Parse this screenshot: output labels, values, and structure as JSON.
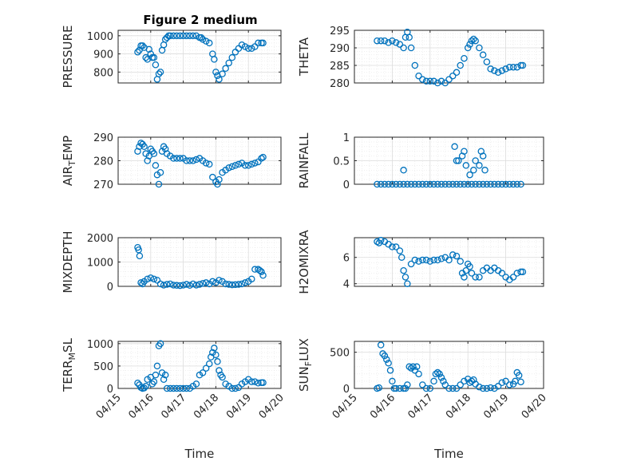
{
  "figure": {
    "title": "Figure 2 medium",
    "xlabel": "Time",
    "marker_color": "#0072BD",
    "x_tick_labels": [
      "04/15",
      "04/16",
      "04/17",
      "04/18",
      "04/19",
      "04/20"
    ],
    "x_ticks": [
      0,
      1,
      2,
      3,
      4,
      5
    ],
    "x_range": [
      0,
      5
    ],
    "grid": "on (major + minor)"
  },
  "chart_data": [
    {
      "type": "scatter",
      "ylabel": "PRESSURE",
      "ylim": [
        740,
        1030
      ],
      "yticks": [
        800,
        900,
        1000
      ],
      "x": [
        0.6,
        0.65,
        0.7,
        0.75,
        0.8,
        0.85,
        0.9,
        0.95,
        1.0,
        1.05,
        1.1,
        1.15,
        1.2,
        1.25,
        1.3,
        1.35,
        1.4,
        1.45,
        1.5,
        1.55,
        1.6,
        1.7,
        1.8,
        1.9,
        2.0,
        2.1,
        2.2,
        2.3,
        2.4,
        2.5,
        2.55,
        2.6,
        2.7,
        2.8,
        2.9,
        2.95,
        3.0,
        3.05,
        3.1,
        3.2,
        3.3,
        3.4,
        3.5,
        3.6,
        3.7,
        3.8,
        3.9,
        4.0,
        4.1,
        4.2,
        4.3,
        4.4,
        4.45
      ],
      "values": [
        910,
        920,
        945,
        945,
        935,
        880,
        870,
        925,
        900,
        880,
        880,
        840,
        760,
        790,
        800,
        920,
        950,
        980,
        990,
        1000,
        1000,
        1000,
        1000,
        1000,
        1000,
        1000,
        1000,
        1000,
        1000,
        990,
        990,
        980,
        970,
        960,
        900,
        870,
        800,
        780,
        760,
        790,
        820,
        850,
        880,
        910,
        930,
        950,
        940,
        930,
        930,
        940,
        960,
        960,
        960
      ]
    },
    {
      "type": "scatter",
      "ylabel": "THETA",
      "ylim": [
        280,
        295
      ],
      "yticks": [
        280,
        285,
        290,
        295
      ],
      "x": [
        0.6,
        0.7,
        0.8,
        0.9,
        1.0,
        1.1,
        1.2,
        1.3,
        1.35,
        1.4,
        1.45,
        1.5,
        1.6,
        1.7,
        1.8,
        1.9,
        2.0,
        2.1,
        2.2,
        2.3,
        2.4,
        2.5,
        2.6,
        2.7,
        2.8,
        2.9,
        3.0,
        3.05,
        3.1,
        3.15,
        3.2,
        3.3,
        3.4,
        3.5,
        3.6,
        3.7,
        3.8,
        3.9,
        4.0,
        4.1,
        4.2,
        4.3,
        4.4,
        4.45
      ],
      "values": [
        292,
        292,
        292,
        291.5,
        292,
        291.5,
        291,
        290,
        293,
        294.5,
        293,
        290,
        285,
        282,
        281,
        280.5,
        280.5,
        280.5,
        280,
        280.5,
        280,
        281,
        282,
        283,
        285,
        287,
        290,
        291,
        292,
        292.5,
        292,
        290,
        288,
        286,
        284,
        283.5,
        283,
        283.5,
        284,
        284.5,
        284.5,
        284.5,
        285,
        285
      ]
    },
    {
      "type": "scatter",
      "ylabel": "AIR_TEMP",
      "ylim": [
        270,
        290
      ],
      "yticks": [
        270,
        280,
        290
      ],
      "x": [
        0.6,
        0.65,
        0.7,
        0.75,
        0.8,
        0.85,
        0.9,
        0.95,
        1.0,
        1.05,
        1.1,
        1.15,
        1.2,
        1.25,
        1.3,
        1.35,
        1.4,
        1.45,
        1.5,
        1.6,
        1.7,
        1.8,
        1.9,
        2.0,
        2.1,
        2.2,
        2.3,
        2.4,
        2.5,
        2.6,
        2.7,
        2.8,
        2.9,
        3.0,
        3.05,
        3.1,
        3.2,
        3.3,
        3.4,
        3.5,
        3.6,
        3.7,
        3.8,
        3.9,
        4.0,
        4.1,
        4.2,
        4.3,
        4.4,
        4.45
      ],
      "values": [
        284,
        286,
        287.5,
        287,
        286,
        283,
        280,
        282,
        285,
        284,
        283,
        278,
        274,
        270,
        275,
        284,
        286,
        285,
        283,
        282,
        281,
        281,
        281,
        281,
        280,
        280,
        280,
        280.5,
        281,
        280,
        279,
        278.5,
        273,
        271,
        270,
        272,
        275,
        276,
        277,
        277.5,
        278,
        278.5,
        279,
        278,
        278,
        278.5,
        279,
        279.5,
        281,
        281.5
      ]
    },
    {
      "type": "scatter",
      "ylabel": "RAINFALL",
      "ylim": [
        0,
        1
      ],
      "yticks": [
        0,
        0.5,
        1
      ],
      "x": [
        0.6,
        0.7,
        0.8,
        0.9,
        1.0,
        1.1,
        1.2,
        1.3,
        1.4,
        1.5,
        1.6,
        1.7,
        1.8,
        1.9,
        2.0,
        2.1,
        2.2,
        2.3,
        2.4,
        2.5,
        2.6,
        2.7,
        2.8,
        2.9,
        3.0,
        3.1,
        3.2,
        3.3,
        3.4,
        3.5,
        3.6,
        3.7,
        3.8,
        3.9,
        4.0,
        4.1,
        4.2,
        4.3,
        4.4,
        1.3,
        2.65,
        2.7,
        2.75,
        2.85,
        2.9,
        2.95,
        3.05,
        3.15,
        3.2,
        3.3,
        3.35,
        3.4,
        3.45
      ],
      "values": [
        0,
        0,
        0,
        0,
        0,
        0,
        0,
        0,
        0,
        0,
        0,
        0,
        0,
        0,
        0,
        0,
        0,
        0,
        0,
        0,
        0,
        0,
        0,
        0,
        0,
        0,
        0,
        0,
        0,
        0,
        0,
        0,
        0,
        0,
        0,
        0,
        0,
        0,
        0,
        0.3,
        0.8,
        0.5,
        0.5,
        0.6,
        0.7,
        0.4,
        0.2,
        0.3,
        0.5,
        0.4,
        0.7,
        0.6,
        0.3
      ]
    },
    {
      "type": "scatter",
      "ylabel": "MIXDEPTH",
      "ylim": [
        0,
        2000
      ],
      "yticks": [
        0,
        1000,
        2000
      ],
      "x": [
        0.6,
        0.63,
        0.66,
        0.7,
        0.75,
        0.8,
        0.9,
        1.0,
        1.1,
        1.2,
        1.3,
        1.4,
        1.5,
        1.6,
        1.7,
        1.8,
        1.9,
        2.0,
        2.1,
        2.2,
        2.3,
        2.4,
        2.5,
        2.6,
        2.7,
        2.8,
        2.9,
        3.0,
        3.1,
        3.2,
        3.3,
        3.4,
        3.5,
        3.6,
        3.7,
        3.8,
        3.9,
        4.0,
        4.1,
        4.2,
        4.3,
        4.35,
        4.4,
        4.45
      ],
      "values": [
        1600,
        1500,
        1250,
        150,
        100,
        200,
        300,
        350,
        300,
        250,
        100,
        50,
        80,
        100,
        50,
        40,
        30,
        50,
        80,
        40,
        100,
        50,
        80,
        120,
        150,
        100,
        200,
        150,
        250,
        200,
        100,
        80,
        60,
        70,
        80,
        100,
        150,
        200,
        300,
        700,
        700,
        650,
        600,
        450
      ]
    },
    {
      "type": "scatter",
      "ylabel": "H2OMIXRA",
      "ylim": [
        3.8,
        7.5
      ],
      "yticks": [
        4,
        6
      ],
      "x": [
        0.6,
        0.65,
        0.7,
        0.8,
        0.9,
        1.0,
        1.1,
        1.2,
        1.25,
        1.3,
        1.35,
        1.4,
        1.5,
        1.6,
        1.7,
        1.8,
        1.9,
        2.0,
        2.1,
        2.2,
        2.3,
        2.4,
        2.5,
        2.6,
        2.7,
        2.8,
        2.85,
        2.9,
        2.95,
        3.0,
        3.05,
        3.1,
        3.2,
        3.3,
        3.4,
        3.5,
        3.6,
        3.7,
        3.8,
        3.9,
        4.0,
        4.1,
        4.2,
        4.3,
        4.4,
        4.45
      ],
      "values": [
        7.2,
        7.1,
        7.3,
        7.2,
        7,
        6.8,
        6.8,
        6.5,
        6,
        5,
        4.5,
        4,
        5.5,
        5.8,
        5.7,
        5.8,
        5.8,
        5.7,
        5.8,
        5.8,
        5.9,
        6,
        5.8,
        6.2,
        6.1,
        5.7,
        4.8,
        4.5,
        5,
        5.5,
        5.3,
        4.8,
        4.5,
        4.5,
        5,
        5.2,
        5,
        5.2,
        5,
        4.8,
        4.5,
        4.3,
        4.5,
        4.8,
        4.9,
        4.9
      ]
    },
    {
      "type": "scatter",
      "ylabel": "TERR_MSL",
      "ylim": [
        0,
        1050
      ],
      "yticks": [
        0,
        500,
        1000
      ],
      "x": [
        0.6,
        0.65,
        0.7,
        0.75,
        0.8,
        0.85,
        0.9,
        1.0,
        1.05,
        1.1,
        1.15,
        1.2,
        1.25,
        1.3,
        1.35,
        1.4,
        1.45,
        1.5,
        1.6,
        1.7,
        1.8,
        1.9,
        2.0,
        2.1,
        2.2,
        2.3,
        2.4,
        2.5,
        2.6,
        2.7,
        2.8,
        2.85,
        2.9,
        2.95,
        3.0,
        3.05,
        3.1,
        3.15,
        3.2,
        3.3,
        3.4,
        3.5,
        3.6,
        3.7,
        3.8,
        3.9,
        4.0,
        4.1,
        4.2,
        4.3,
        4.4,
        4.45
      ],
      "values": [
        120,
        80,
        20,
        0,
        10,
        50,
        200,
        250,
        100,
        150,
        300,
        500,
        950,
        1000,
        350,
        200,
        300,
        0,
        0,
        0,
        0,
        0,
        0,
        0,
        0,
        50,
        100,
        300,
        350,
        450,
        550,
        700,
        800,
        900,
        750,
        600,
        400,
        300,
        250,
        100,
        50,
        0,
        0,
        20,
        100,
        150,
        200,
        150,
        150,
        120,
        130,
        130
      ]
    },
    {
      "type": "scatter",
      "ylabel": "SUN_FLUX",
      "ylim": [
        0,
        650
      ],
      "yticks": [
        0,
        500
      ],
      "x": [
        0.6,
        0.65,
        0.7,
        0.75,
        0.8,
        0.85,
        0.9,
        0.95,
        1.0,
        1.05,
        1.1,
        1.2,
        1.3,
        1.35,
        1.4,
        1.45,
        1.5,
        1.55,
        1.6,
        1.65,
        1.7,
        1.8,
        1.9,
        2.0,
        2.1,
        2.15,
        2.2,
        2.25,
        2.3,
        2.35,
        2.4,
        2.5,
        2.6,
        2.7,
        2.8,
        2.9,
        3.0,
        3.05,
        3.1,
        3.15,
        3.2,
        3.3,
        3.4,
        3.5,
        3.6,
        3.7,
        3.8,
        3.9,
        4.0,
        4.1,
        4.2,
        4.25,
        4.3,
        4.35,
        4.4
      ],
      "values": [
        0,
        10,
        600,
        480,
        450,
        400,
        350,
        250,
        100,
        0,
        0,
        0,
        0,
        0,
        50,
        300,
        280,
        300,
        250,
        300,
        200,
        50,
        0,
        0,
        100,
        200,
        220,
        200,
        150,
        100,
        50,
        0,
        0,
        0,
        50,
        100,
        130,
        80,
        100,
        120,
        60,
        20,
        0,
        0,
        10,
        0,
        30,
        80,
        100,
        50,
        60,
        100,
        220,
        180,
        90
      ]
    }
  ]
}
